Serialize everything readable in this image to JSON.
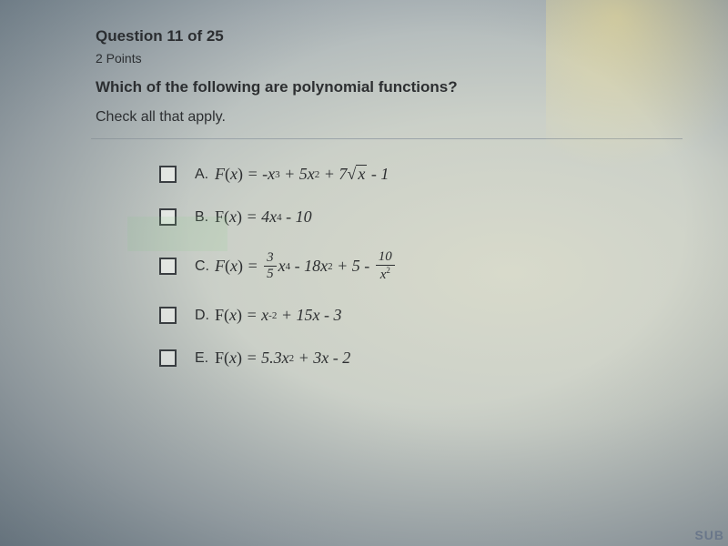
{
  "header": {
    "question_label": "Question 11 of 25",
    "points": "2 Points",
    "prompt": "Which of the following are polynomial functions?",
    "instruction": "Check all that apply."
  },
  "options": [
    {
      "letter": "A.",
      "type": "A"
    },
    {
      "letter": "B.",
      "type": "B"
    },
    {
      "letter": "C.",
      "type": "C"
    },
    {
      "letter": "D.",
      "type": "D"
    },
    {
      "letter": "E.",
      "type": "E"
    }
  ],
  "corner": "SUB",
  "colors": {
    "text": "#2d2f31",
    "border": "#9ba4a9",
    "checkbox_border": "#3b3f42"
  },
  "math_strings": {
    "A": "F(x) = -x³ + 5x² + 7√x - 1",
    "B": "F(x) = 4x⁴ - 10",
    "C": "F(x) = (3/5)x⁴ - 18x² + 5 - 10/x²",
    "D": "F(x) = x⁻² + 15x - 3",
    "E": "F(x) = 5.3x² + 3x - 2"
  }
}
